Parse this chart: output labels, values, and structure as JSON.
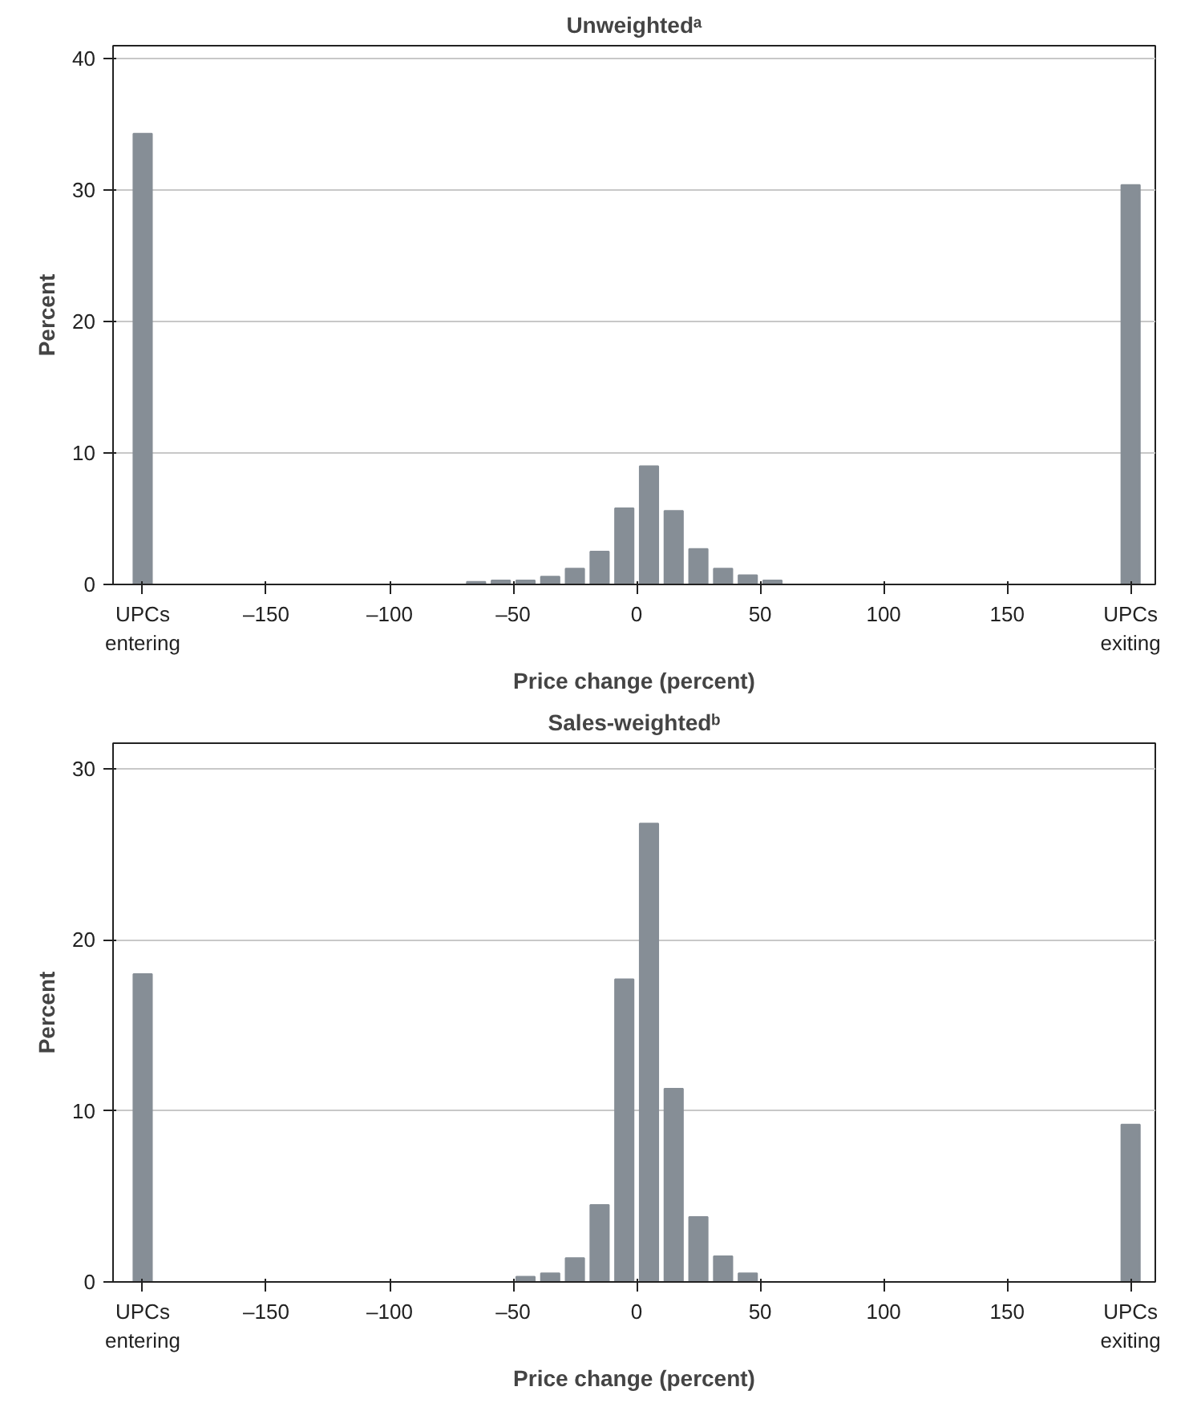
{
  "chart_data": [
    {
      "type": "bar",
      "title": "Unweightedᵃ",
      "xlabel": "Price change (percent)",
      "ylabel": "Percent",
      "color": "#868e96",
      "grid": "y",
      "x": [
        -200,
        -65,
        -55,
        -45,
        -35,
        -25,
        -15,
        -5,
        5,
        15,
        25,
        35,
        45,
        55,
        200
      ],
      "values": [
        34.3,
        0.2,
        0.3,
        0.3,
        0.6,
        1.2,
        2.5,
        5.8,
        9.0,
        5.6,
        2.7,
        1.2,
        0.7,
        0.3,
        30.4
      ],
      "xlim": [
        -212,
        210
      ],
      "ylim": [
        0,
        41
      ],
      "xticks": [
        {
          "value": -200,
          "label": "UPCs\nentering"
        },
        {
          "value": -150,
          "label": "–150"
        },
        {
          "value": -100,
          "label": "–100"
        },
        {
          "value": -50,
          "label": "–50"
        },
        0,
        50,
        100,
        150,
        {
          "value": 200,
          "label": "UPCs\nexiting"
        }
      ],
      "yticks": [
        0,
        10,
        20,
        30,
        40
      ]
    },
    {
      "type": "bar",
      "title": "Sales-weightedᵇ",
      "xlabel": "Price change (percent)",
      "ylabel": "Percent",
      "color": "#868e96",
      "grid": "y",
      "x": [
        -200,
        -45,
        -35,
        -25,
        -15,
        -5,
        5,
        15,
        25,
        35,
        45,
        200
      ],
      "values": [
        18.0,
        0.3,
        0.5,
        1.4,
        4.5,
        17.7,
        26.8,
        11.3,
        3.8,
        1.5,
        0.5,
        9.2
      ],
      "xlim": [
        -212,
        210
      ],
      "ylim": [
        0,
        31.5
      ],
      "xticks": [
        {
          "value": -200,
          "label": "UPCs\nentering"
        },
        {
          "value": -150,
          "label": "–150"
        },
        {
          "value": -100,
          "label": "–100"
        },
        {
          "value": -50,
          "label": "–50"
        },
        0,
        50,
        100,
        150,
        {
          "value": 200,
          "label": "UPCs\nexiting"
        }
      ],
      "yticks": [
        0,
        10,
        20,
        30
      ]
    }
  ]
}
